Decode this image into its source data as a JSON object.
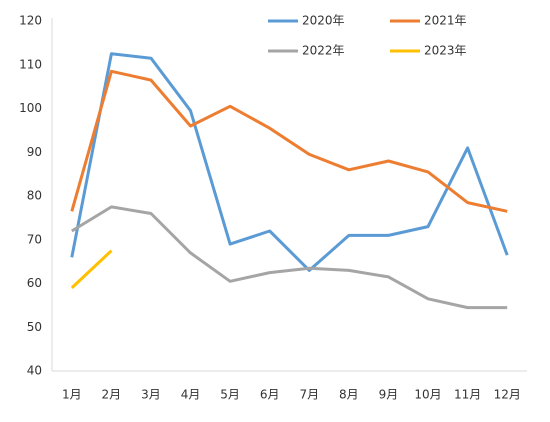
{
  "chart_data": {
    "type": "line",
    "categories": [
      "1月",
      "2月",
      "3月",
      "4月",
      "5月",
      "6月",
      "7月",
      "8月",
      "9月",
      "10月",
      "11月",
      "12月"
    ],
    "series": [
      {
        "name": "2020年",
        "color": "#5b9bd5",
        "values": [
          66,
          112.5,
          111.5,
          99.5,
          69,
          72,
          63,
          71,
          71,
          73,
          91,
          66.5
        ]
      },
      {
        "name": "2021年",
        "color": "#ed7d31",
        "values": [
          76.5,
          108.5,
          106.5,
          96,
          100.5,
          95.5,
          89.5,
          86,
          88,
          85.5,
          78.5,
          76.5
        ]
      },
      {
        "name": "2022年",
        "color": "#a5a5a5",
        "values": [
          72,
          77.5,
          76,
          67,
          60.5,
          62.5,
          63.5,
          63,
          61.5,
          56.5,
          54.5,
          54.5
        ]
      },
      {
        "name": "2023年",
        "color": "#ffc000",
        "values": [
          59,
          67.5,
          null,
          null,
          null,
          null,
          null,
          null,
          null,
          null,
          null,
          null
        ]
      }
    ],
    "ylim": [
      40,
      120
    ],
    "yticks": [
      40,
      50,
      60,
      70,
      80,
      90,
      100,
      110,
      120
    ],
    "grid": false,
    "legend": "top-right"
  }
}
